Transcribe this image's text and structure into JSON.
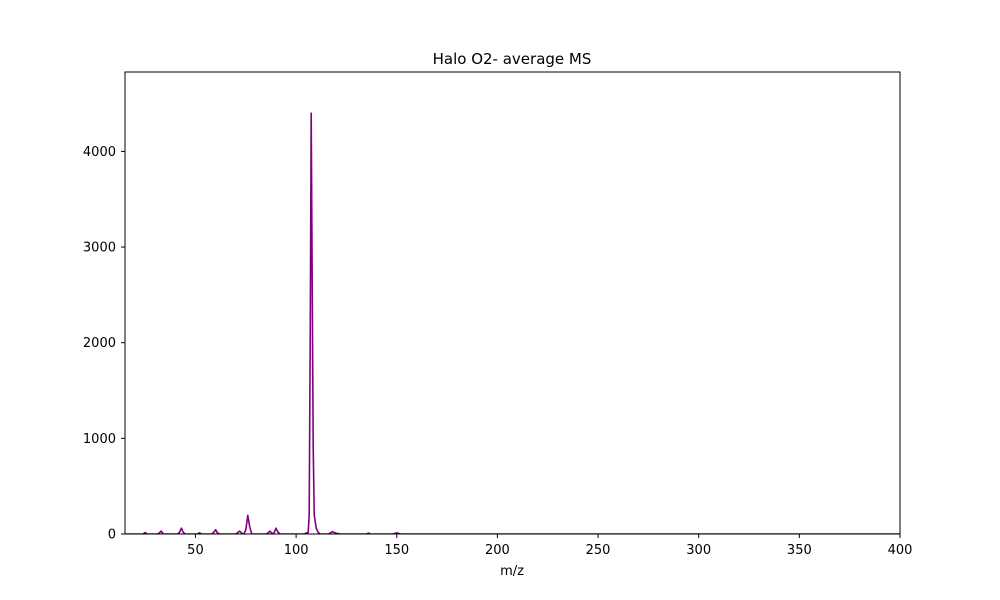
{
  "chart_data": {
    "type": "line",
    "title": "Halo O2- average MS",
    "xlabel": "m/z",
    "ylabel": "",
    "xlim": [
      15,
      400
    ],
    "ylim": [
      0,
      4830
    ],
    "xticks": [
      50,
      100,
      150,
      200,
      250,
      300,
      350,
      400
    ],
    "yticks": [
      0,
      1000,
      2000,
      3000,
      4000
    ],
    "grid": false,
    "legend": "none",
    "series": [
      {
        "color": "#800080",
        "x": [
          15,
          24,
          25,
          26,
          31,
          32,
          33,
          34,
          41,
          42,
          43,
          44,
          45,
          51,
          52,
          53,
          58,
          59,
          60,
          61,
          62,
          70,
          71,
          72,
          73,
          74,
          75,
          76,
          77,
          78,
          85,
          86,
          87,
          88,
          89,
          90,
          91,
          92,
          104,
          105,
          106,
          106.5,
          107,
          107.5,
          108,
          108.5,
          109,
          110,
          111,
          112,
          116,
          117,
          118,
          119,
          120,
          122,
          135,
          136,
          137,
          148,
          150,
          152,
          170,
          200,
          250,
          300,
          350,
          400
        ],
        "y": [
          0,
          0,
          15,
          0,
          0,
          10,
          30,
          0,
          0,
          15,
          60,
          15,
          0,
          0,
          12,
          0,
          0,
          15,
          45,
          10,
          0,
          0,
          15,
          30,
          8,
          0,
          40,
          195,
          70,
          0,
          0,
          10,
          30,
          5,
          10,
          60,
          20,
          0,
          0,
          10,
          15,
          200,
          2000,
          4400,
          2600,
          900,
          200,
          60,
          15,
          0,
          0,
          10,
          25,
          15,
          8,
          0,
          0,
          10,
          0,
          0,
          12,
          0,
          0,
          0,
          0,
          0,
          0,
          0
        ]
      }
    ]
  }
}
